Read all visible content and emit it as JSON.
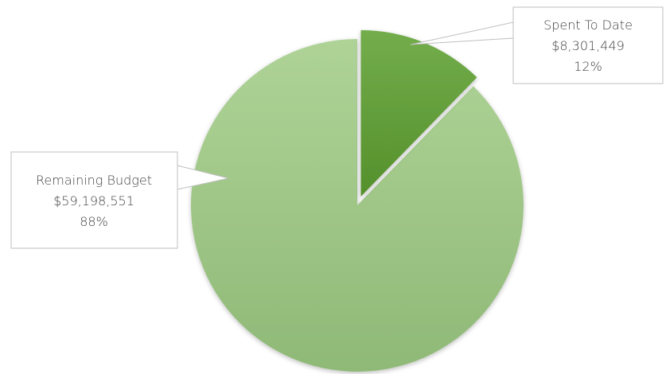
{
  "chart_data": {
    "type": "pie",
    "title": "",
    "slices": [
      {
        "label": "Spent To Date",
        "value": 8301449,
        "value_text": "$8,301,449",
        "percent_text": "12%",
        "color": "#5f9b37",
        "exploded": true
      },
      {
        "label": "Remaining Budget",
        "value": 59198551,
        "value_text": "$59,198,551",
        "percent_text": "88%",
        "color": "#a9cf8e",
        "exploded": false
      }
    ]
  }
}
